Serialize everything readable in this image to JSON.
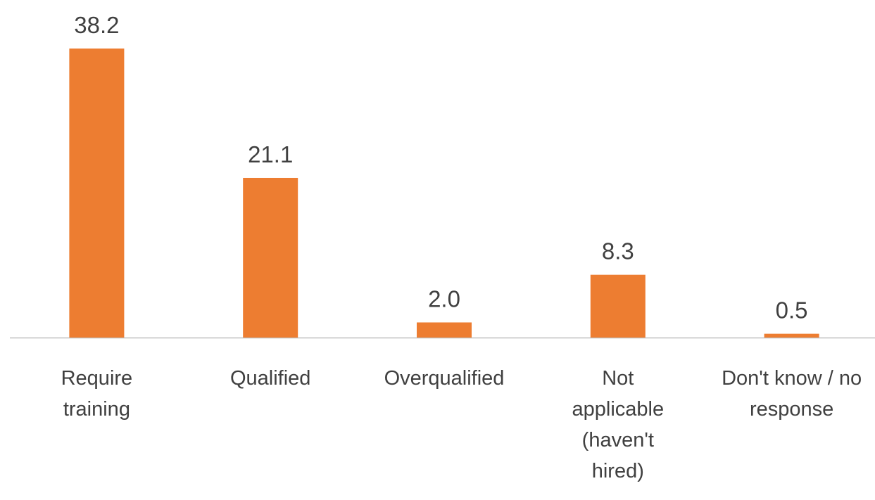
{
  "chart_data": {
    "type": "bar",
    "categories": [
      "Require training",
      "Qualified",
      "Overqualified",
      "Not applicable (haven't hired)",
      "Don't know / no response"
    ],
    "values": [
      38.2,
      21.1,
      2.0,
      8.3,
      0.5
    ],
    "value_labels": [
      "38.2",
      "21.1",
      "2.0",
      "8.3",
      "0.5"
    ],
    "color": "#ed7d31"
  }
}
